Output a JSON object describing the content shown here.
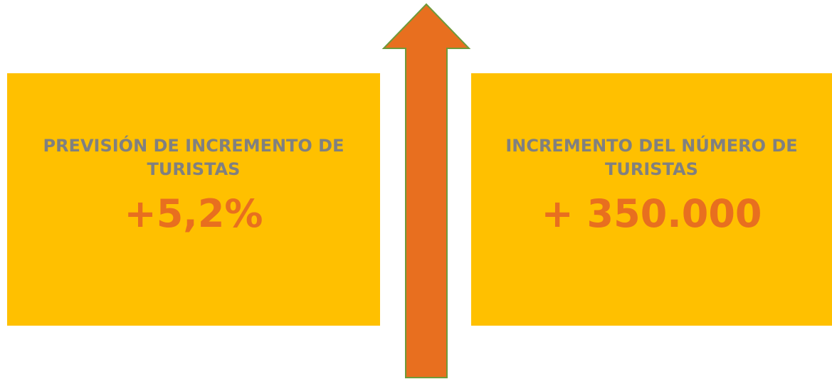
{
  "cards": [
    {
      "label": "PREVISIÓN DE INCREMENTO DE TURISTAS",
      "value": "+5,2%"
    },
    {
      "label": "INCREMENTO DEL NÚMERO DE TURISTAS",
      "value": "+ 350.000"
    }
  ]
}
